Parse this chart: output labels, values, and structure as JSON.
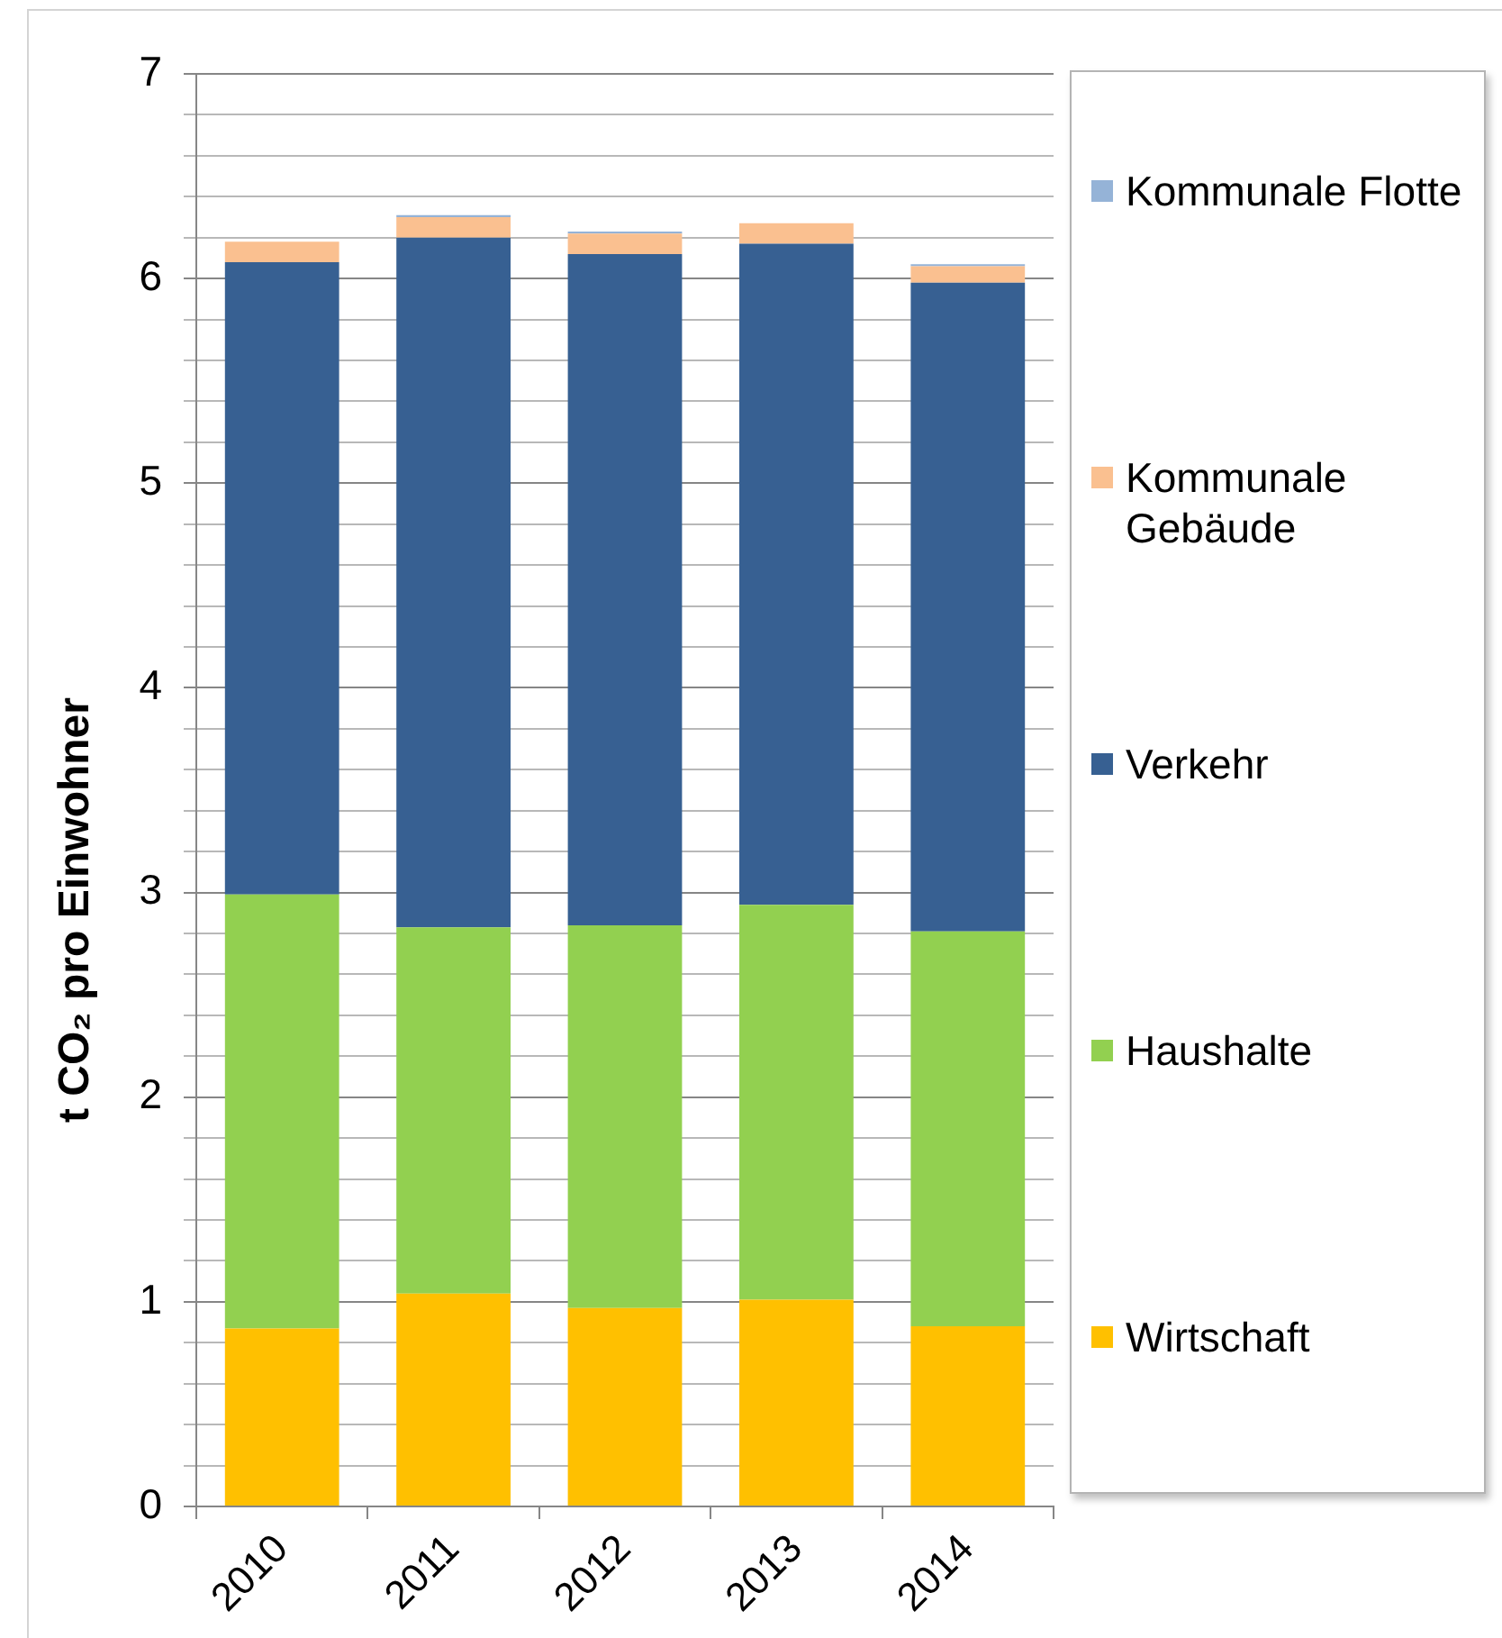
{
  "chart_data": {
    "type": "bar",
    "ylabel": "t CO₂ pro Einwohner",
    "categories": [
      "2010",
      "2011",
      "2012",
      "2013",
      "2014"
    ],
    "stacked": true,
    "series": [
      {
        "name": "Wirtschaft",
        "color": "#ffc000",
        "values": [
          0.87,
          1.04,
          0.97,
          1.01,
          0.88
        ]
      },
      {
        "name": "Haushalte",
        "color": "#92d050",
        "values": [
          2.12,
          1.79,
          1.87,
          1.93,
          1.93
        ]
      },
      {
        "name": "Verkehr",
        "color": "#376092",
        "values": [
          3.09,
          3.37,
          3.28,
          3.23,
          3.17
        ]
      },
      {
        "name": "Kommunale Gebäude",
        "color": "#fac090",
        "values": [
          0.1,
          0.1,
          0.1,
          0.1,
          0.08
        ]
      },
      {
        "name": "Kommunale Flotte",
        "color": "#95b3d7",
        "values": [
          0,
          0.01,
          0.01,
          0,
          0.01
        ]
      }
    ],
    "ylim": [
      0,
      7
    ],
    "yticks": [
      0,
      {
        "value": 0.2,
        "label": null
      },
      {
        "value": 0.4,
        "label": null
      },
      {
        "value": 0.6,
        "label": null
      },
      {
        "value": 0.8,
        "label": null
      },
      1,
      {
        "value": 1.2,
        "label": null
      },
      {
        "value": 1.4,
        "label": null
      },
      {
        "value": 1.6,
        "label": null
      },
      {
        "value": 1.8,
        "label": null
      },
      2,
      {
        "value": 2.2,
        "label": null
      },
      {
        "value": 2.4,
        "label": null
      },
      {
        "value": 2.6,
        "label": null
      },
      {
        "value": 2.8,
        "label": null
      },
      3,
      {
        "value": 3.2,
        "label": null
      },
      {
        "value": 3.4,
        "label": null
      },
      {
        "value": 3.6,
        "label": null
      },
      {
        "value": 3.8,
        "label": null
      },
      4,
      {
        "value": 4.2,
        "label": null
      },
      {
        "value": 4.4,
        "label": null
      },
      {
        "value": 4.6,
        "label": null
      },
      {
        "value": 4.8,
        "label": null
      },
      5,
      {
        "value": 5.2,
        "label": null
      },
      {
        "value": 5.4,
        "label": null
      },
      {
        "value": 5.6,
        "label": null
      },
      {
        "value": 5.8,
        "label": null
      },
      6,
      {
        "value": 6.2,
        "label": null
      },
      {
        "value": 6.4,
        "label": null
      },
      {
        "value": 6.6,
        "label": null
      },
      {
        "value": 6.8,
        "label": null
      },
      7
    ],
    "grid": true,
    "legend": "right"
  }
}
